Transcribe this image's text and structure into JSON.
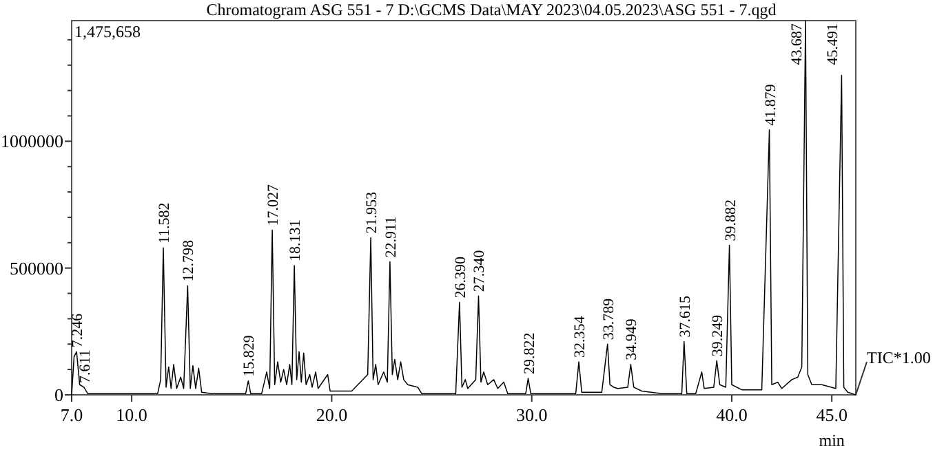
{
  "chart_data": {
    "type": "line",
    "title": "Chromatogram ASG 551 - 7 D:\\GCMS Data\\MAY 2023\\04.05.2023\\ASG 551 - 7.qgd",
    "xlabel": "min",
    "xlim": [
      7.0,
      46.2
    ],
    "xticks": [
      {
        "value": 7,
        "label": "7.0"
      },
      {
        "value": 10,
        "label": "10.0"
      },
      {
        "value": 20,
        "label": "20.0"
      },
      {
        "value": 30,
        "label": "30.0"
      },
      {
        "value": 40,
        "label": "40.0"
      },
      {
        "value": 45,
        "label": "45.0"
      }
    ],
    "ylim": [
      0,
      1475658
    ],
    "yticks": [
      0,
      {
        "value": 100000,
        "label": null
      },
      {
        "value": 200000,
        "label": null
      },
      {
        "value": 300000,
        "label": null
      },
      {
        "value": 400000,
        "label": null
      },
      500000,
      {
        "value": 600000,
        "label": null
      },
      {
        "value": 700000,
        "label": null
      },
      {
        "value": 800000,
        "label": null
      },
      {
        "value": 900000,
        "label": null
      },
      1000000,
      {
        "value": 1100000,
        "label": null
      },
      {
        "value": 1200000,
        "label": null
      },
      {
        "value": 1300000,
        "label": null
      },
      {
        "value": 1400000,
        "label": null
      }
    ],
    "grid": false,
    "marker": "none",
    "line_style": "solid",
    "series": [
      {
        "color": "#000000",
        "x": [
          7.0,
          7.12,
          7.246,
          7.4,
          7.611,
          7.8,
          11.3,
          11.45,
          11.582,
          11.72,
          11.85,
          11.97,
          12.1,
          12.25,
          12.45,
          12.6,
          12.798,
          12.93,
          13.06,
          13.2,
          13.35,
          13.5,
          14.0,
          15.7,
          15.829,
          15.95,
          16.5,
          16.75,
          16.9,
          17.027,
          17.15,
          17.3,
          17.45,
          17.6,
          17.75,
          17.9,
          18.01,
          18.131,
          18.25,
          18.37,
          18.48,
          18.6,
          18.72,
          18.9,
          19.02,
          19.2,
          19.32,
          19.8,
          19.92,
          21.0,
          21.8,
          21.953,
          22.07,
          22.2,
          22.32,
          22.6,
          22.78,
          22.911,
          23.03,
          23.15,
          23.3,
          23.45,
          23.6,
          23.8,
          24.3,
          24.5,
          26.2,
          26.39,
          26.51,
          26.68,
          26.8,
          27.2,
          27.34,
          27.46,
          27.6,
          27.8,
          28.1,
          28.3,
          28.6,
          28.8,
          29.7,
          29.822,
          29.95,
          32.2,
          32.354,
          32.5,
          33.5,
          33.789,
          33.91,
          34.1,
          34.3,
          34.8,
          34.949,
          35.1,
          35.5,
          36.5,
          37.5,
          37.615,
          37.75,
          38.2,
          38.5,
          38.62,
          39.1,
          39.249,
          39.4,
          39.7,
          39.882,
          40.0,
          40.5,
          41.0,
          41.5,
          41.879,
          42.0,
          42.3,
          42.5,
          43.0,
          43.3,
          43.5,
          43.687,
          43.8,
          44.0,
          44.5,
          45.2,
          45.491,
          45.6,
          45.8,
          46.2
        ],
        "values": [
          0,
          150000,
          170000,
          40000,
          30000,
          5000,
          5000,
          60000,
          580000,
          30000,
          110000,
          25000,
          120000,
          25000,
          70000,
          25000,
          430000,
          25000,
          115000,
          25000,
          105000,
          10000,
          5000,
          5000,
          55000,
          5000,
          5000,
          90000,
          25000,
          650000,
          40000,
          130000,
          50000,
          100000,
          40000,
          120000,
          40000,
          510000,
          60000,
          170000,
          50000,
          165000,
          40000,
          80000,
          30000,
          90000,
          25000,
          80000,
          15000,
          15000,
          80000,
          620000,
          60000,
          120000,
          40000,
          90000,
          50000,
          525000,
          80000,
          140000,
          60000,
          130000,
          60000,
          40000,
          30000,
          5000,
          5000,
          365000,
          30000,
          60000,
          25000,
          60000,
          390000,
          50000,
          90000,
          40000,
          60000,
          25000,
          50000,
          5000,
          5000,
          65000,
          5000,
          5000,
          130000,
          10000,
          10000,
          200000,
          40000,
          30000,
          25000,
          30000,
          120000,
          30000,
          15000,
          5000,
          5000,
          210000,
          5000,
          5000,
          90000,
          25000,
          30000,
          135000,
          40000,
          30000,
          590000,
          40000,
          20000,
          20000,
          20000,
          1045000,
          40000,
          50000,
          25000,
          60000,
          70000,
          110000,
          1475000,
          80000,
          40000,
          40000,
          25000,
          1260000,
          30000,
          10000,
          0
        ]
      }
    ],
    "annotations": [
      "1,475,658",
      "TIC*1.00",
      {
        "text": "7.246",
        "x": 7.246,
        "y": 170000
      },
      {
        "text": "7.611",
        "x": 7.611,
        "y": 30000
      },
      {
        "text": "11.582",
        "x": 11.582,
        "y": 580000
      },
      {
        "text": "12.798",
        "x": 12.798,
        "y": 430000
      },
      {
        "text": "15.829",
        "x": 15.829,
        "y": 55000
      },
      {
        "text": "17.027",
        "x": 17.027,
        "y": 650000
      },
      {
        "text": "18.131",
        "x": 18.131,
        "y": 510000
      },
      {
        "text": "21.953",
        "x": 21.953,
        "y": 620000
      },
      {
        "text": "22.911",
        "x": 22.911,
        "y": 525000
      },
      {
        "text": "26.390",
        "x": 26.39,
        "y": 365000
      },
      {
        "text": "27.340",
        "x": 27.34,
        "y": 390000
      },
      {
        "text": "29.822",
        "x": 29.822,
        "y": 65000
      },
      {
        "text": "32.354",
        "x": 32.354,
        "y": 130000
      },
      {
        "text": "33.789",
        "x": 33.789,
        "y": 200000
      },
      {
        "text": "34.949",
        "x": 34.949,
        "y": 120000
      },
      {
        "text": "37.615",
        "x": 37.615,
        "y": 210000
      },
      {
        "text": "39.249",
        "x": 39.249,
        "y": 135000
      },
      {
        "text": "39.882",
        "x": 39.882,
        "y": 590000
      },
      {
        "text": "41.879",
        "x": 41.879,
        "y": 1045000
      },
      {
        "text": "43.687",
        "x": 43.687,
        "y": 1475000
      },
      {
        "text": "45.491",
        "x": 45.491,
        "y": 1260000
      }
    ]
  }
}
